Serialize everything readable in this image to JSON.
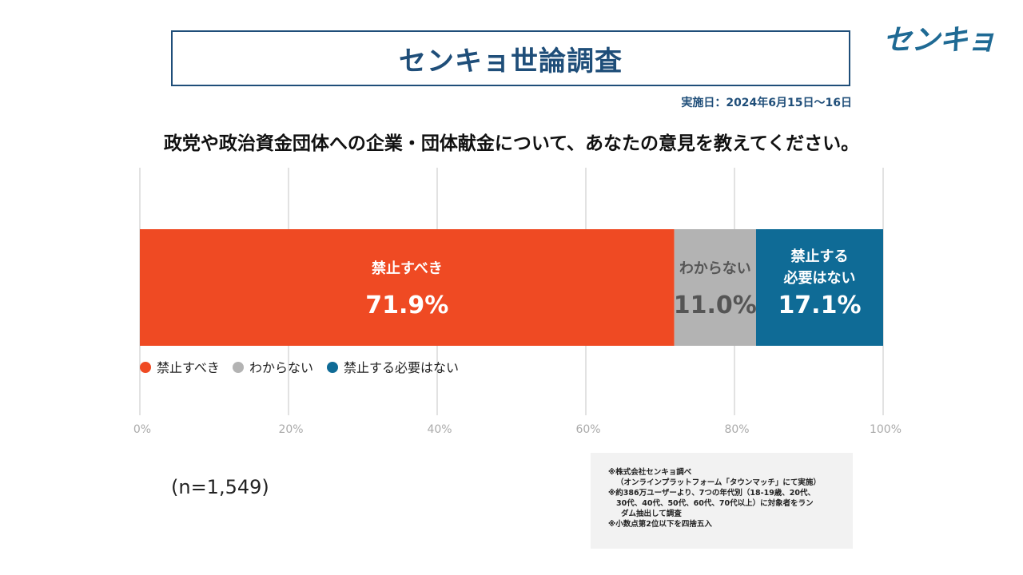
{
  "header": {
    "title": "センキョ世論調査",
    "logo_text": "センキョ",
    "survey_date": "実施日：2024年6月15日～16日"
  },
  "question": "政党や政治資金団体への企業・団体献金について、あなたの意見を教えてください。",
  "chart_data": {
    "type": "bar",
    "orientation": "horizontal-stacked-100",
    "categories": [
      "禁止すべき",
      "わからない",
      "禁止する必要はない"
    ],
    "values": [
      71.9,
      11.0,
      17.1
    ],
    "value_labels": [
      "71.9%",
      "11.0%",
      "17.1%"
    ],
    "segment_labels": [
      [
        "禁止すべき"
      ],
      [
        "わからない"
      ],
      [
        "禁止する",
        "必要はない"
      ]
    ],
    "colors": [
      "#ef4a23",
      "#b3b3b3",
      "#0f6b96"
    ],
    "label_colors": [
      "#ffffff",
      "#555555",
      "#ffffff"
    ],
    "xlim": [
      0,
      100
    ],
    "ticks": [
      0,
      20,
      40,
      60,
      80,
      100
    ],
    "tick_labels": [
      "0%",
      "20%",
      "40%",
      "60%",
      "80%",
      "100%"
    ],
    "grid": true,
    "legend": [
      "禁止すべき",
      "わからない",
      "禁止する必要はない"
    ],
    "legend_position": "bottom-left"
  },
  "sample_size": "(n=1,549)",
  "notes": [
    "※株式会社センキョ調べ",
    "（オンラインプラットフォーム「タウンマッチ」にて実施）",
    "※約386万ユーザーより、7つの年代別（18-19歳、20代、",
    "30代、40代、50代、60代、70代以上）に対象者をラン",
    "ダム抽出して調査",
    "※小数点第2位以下を四捨五入"
  ]
}
